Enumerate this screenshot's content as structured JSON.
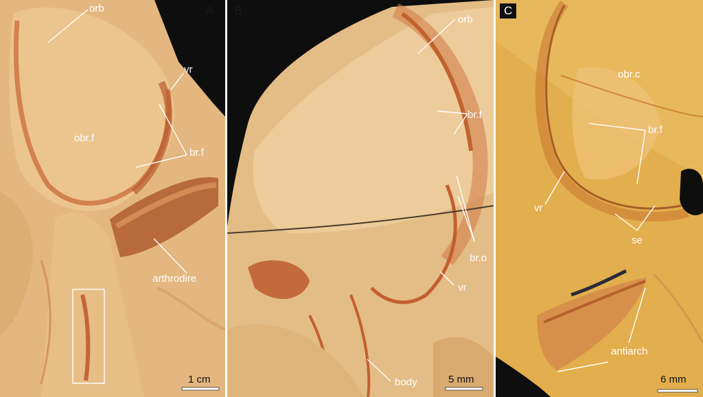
{
  "panels": {
    "a": {
      "letter": "A",
      "labels": {
        "orb": "orb",
        "vr": "vr",
        "obrf": "obr.f",
        "brf": "br.f",
        "arthrodire": "arthrodire"
      },
      "scale": "1 cm"
    },
    "b": {
      "letter": "B",
      "labels": {
        "orb": "orb",
        "brf": "br.f",
        "bro": "br.o",
        "vr": "vr",
        "body": "body"
      },
      "scale": "5 mm"
    },
    "c": {
      "letter": "C",
      "labels": {
        "obrc": "obr.c",
        "brf": "br.f",
        "vr": "vr",
        "se": "se",
        "antiarch": "antiarch"
      },
      "scale": "6 mm"
    }
  },
  "colors": {
    "rock": "#e8bf85",
    "fossil": "#c9673d",
    "background": "#0d0d0d",
    "label": "#ffffff"
  }
}
